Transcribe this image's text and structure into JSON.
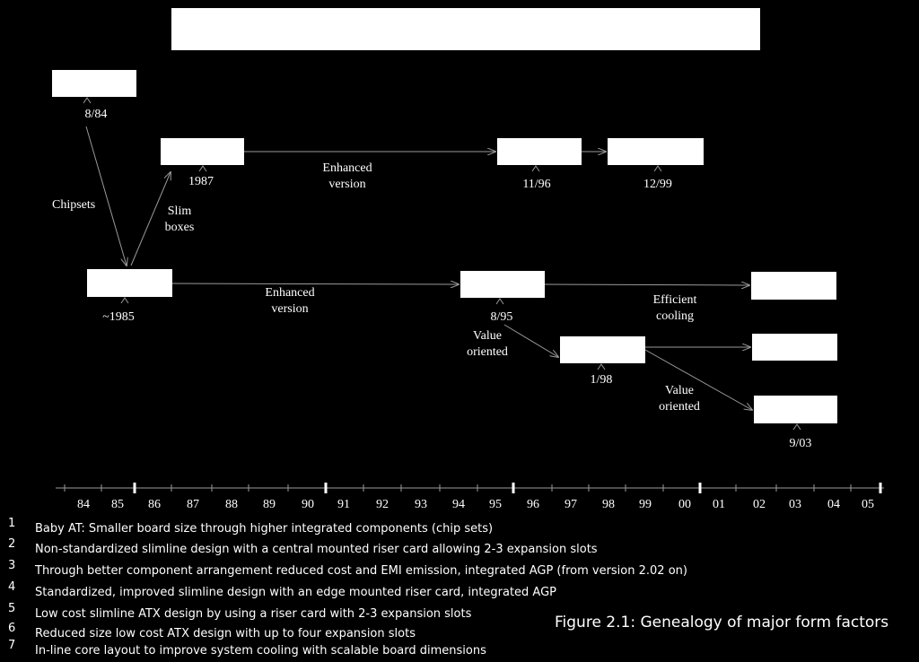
{
  "diagram": {
    "boxes": [
      {
        "id": "title-box",
        "label": ""
      },
      {
        "id": "baby-at-box",
        "label": ""
      },
      {
        "id": "slimline-box",
        "label": ""
      },
      {
        "id": "enhanced-slim-box",
        "label": ""
      },
      {
        "id": "slim-12-99-box",
        "label": ""
      },
      {
        "id": "at-1985-box",
        "label": ""
      },
      {
        "id": "atx-box",
        "label": ""
      },
      {
        "id": "atx-efficient-box",
        "label": ""
      },
      {
        "id": "microatx-box",
        "label": ""
      },
      {
        "id": "microatx-next-box",
        "label": ""
      },
      {
        "id": "value-9-03-box",
        "label": ""
      }
    ],
    "dates": {
      "d1": "8/84",
      "d2": "1987",
      "d3": "11/96",
      "d4": "12/99",
      "d5": "~1985",
      "d6": "8/95",
      "d7": "1/98",
      "d8": "9/03"
    },
    "edge_labels": {
      "chipsets": "Chipsets",
      "slim_boxes": [
        "Slim",
        "boxes"
      ],
      "enhanced_top": [
        "Enhanced",
        "version"
      ],
      "enhanced_mid": [
        "Enhanced",
        "version"
      ],
      "value_oriented_1": [
        "Value",
        "oriented"
      ],
      "efficient_cooling": [
        "Efficient",
        "cooling"
      ],
      "value_oriented_2": [
        "Value",
        "oriented"
      ]
    }
  },
  "timeline": {
    "years": [
      "84",
      "85",
      "86",
      "87",
      "88",
      "89",
      "90",
      "91",
      "92",
      "93",
      "94",
      "95",
      "96",
      "97",
      "98",
      "99",
      "00",
      "01",
      "02",
      "03",
      "04",
      "05"
    ]
  },
  "notes": [
    {
      "num": "1",
      "text": "Baby AT: Smaller board size through higher integrated components (chip sets)"
    },
    {
      "num": "2",
      "text": "Non-standardized slimline design with a central mounted riser card allowing 2-3 expansion slots"
    },
    {
      "num": "3",
      "text": "Through better component arrangement reduced cost and EMI emission, integrated AGP (from version 2.02 on)"
    },
    {
      "num": "4",
      "text": "Standardized, improved slimline design with an edge mounted riser card, integrated AGP"
    },
    {
      "num": "5",
      "text": "Low cost slimline ATX design by using a riser card with 2-3 expansion slots"
    },
    {
      "num": "6",
      "text": "Reduced size low cost ATX design with up to four expansion slots"
    },
    {
      "num": "7",
      "text": "In-line core layout to improve system cooling with scalable board dimensions"
    }
  ],
  "caption": "Figure 2.1: Genealogy of major form factors",
  "colors": {
    "background": "#000000",
    "foreground": "#ffffff",
    "line": "#9a9a9a"
  }
}
